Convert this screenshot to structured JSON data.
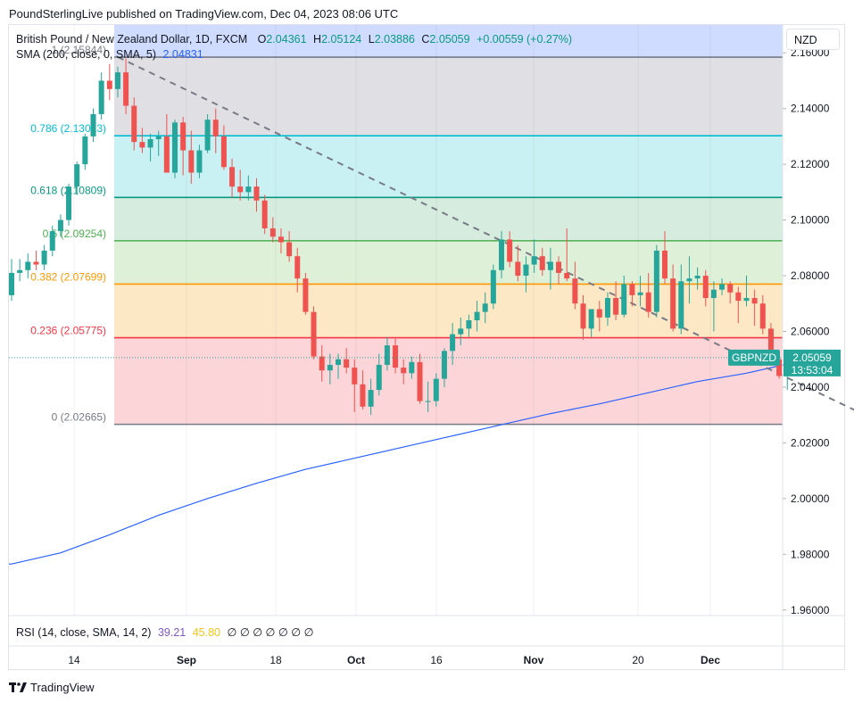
{
  "header": {
    "publisher_line": "PoundSterlingLive published on TradingView.com, Dec 04, 2023 08:06 UTC"
  },
  "legend": {
    "symbol": "British Pound / New Zealand Dollar, 1D, FXCM",
    "o_label": "O",
    "o_value": "2.04361",
    "h_label": "H",
    "h_value": "2.05124",
    "l_label": "L",
    "l_value": "2.03886",
    "c_label": "C",
    "c_value": "2.05059",
    "change": "+0.00559 (+0.27%)",
    "sma_label": "SMA (200, close, 0, SMA, 5)",
    "sma_value": "2.04831"
  },
  "currency_button": "NZD",
  "price_tag": {
    "symbol": "GBPNZD",
    "price": "2.05059",
    "countdown": "13:53:04"
  },
  "rsi_legend": {
    "label": "RSI (14, close, SMA, 14, 2)",
    "value1": "39.21",
    "value2": "45.80",
    "na": "∅ ∅ ∅ ∅ ∅ ∅ ∅"
  },
  "footer": {
    "logo_text": "TradingView",
    "logo_icon": "tradingview-logo-icon"
  },
  "colors": {
    "up": "#26a69a",
    "down": "#ef5350",
    "sma": "#2962ff",
    "trendline": "#787b86"
  },
  "chart_data": {
    "type": "candlestick",
    "title": "British Pound / New Zealand Dollar, 1D, FXCM",
    "ylim": [
      1.955,
      2.175
    ],
    "y_ticks": [
      "2.16000",
      "2.14000",
      "2.12000",
      "2.10000",
      "2.08000",
      "2.06000",
      "2.04000",
      "2.02000",
      "2.00000",
      "1.98000",
      "1.96000"
    ],
    "x_ticks": [
      "14",
      "Sep",
      "18",
      "Oct",
      "16",
      "Nov",
      "20",
      "Dec"
    ],
    "fib_levels": [
      {
        "ratio": 1,
        "value": 2.15844,
        "label": "1 (2.15844)",
        "color": "#787b86"
      },
      {
        "ratio": 0.786,
        "value": 2.13023,
        "label": "0.786 (2.13023)",
        "color": "#00bcd4"
      },
      {
        "ratio": 0.618,
        "value": 2.10809,
        "label": "0.618 (2.10809)",
        "color": "#089981"
      },
      {
        "ratio": 0.5,
        "value": 2.09254,
        "label": "0.5 (2.09254)",
        "color": "#4caf50"
      },
      {
        "ratio": 0.382,
        "value": 2.07699,
        "label": "0.382 (2.07699)",
        "color": "#ff9800"
      },
      {
        "ratio": 0.236,
        "value": 2.05775,
        "label": "0.236 (2.05775)",
        "color": "#f23645"
      },
      {
        "ratio": 0,
        "value": 2.02665,
        "label": "0 (2.02665)",
        "color": "#787b86"
      }
    ],
    "fib_top_value": 2.176,
    "candles": [
      [
        2.073,
        2.086,
        2.071,
        2.081
      ],
      [
        2.081,
        2.086,
        2.078,
        2.082
      ],
      [
        2.082,
        2.088,
        2.079,
        2.085
      ],
      [
        2.085,
        2.089,
        2.082,
        2.084
      ],
      [
        2.084,
        2.091,
        2.082,
        2.089
      ],
      [
        2.089,
        2.098,
        2.087,
        2.096
      ],
      [
        2.096,
        2.102,
        2.094,
        2.1
      ],
      [
        2.1,
        2.113,
        2.098,
        2.112
      ],
      [
        2.112,
        2.121,
        2.109,
        2.12
      ],
      [
        2.12,
        2.131,
        2.118,
        2.13
      ],
      [
        2.13,
        2.14,
        2.128,
        2.138
      ],
      [
        2.138,
        2.153,
        2.136,
        2.15
      ],
      [
        2.15,
        2.156,
        2.143,
        2.147
      ],
      [
        2.147,
        2.155,
        2.144,
        2.153
      ],
      [
        2.153,
        2.158,
        2.138,
        2.141
      ],
      [
        2.141,
        2.144,
        2.125,
        2.128
      ],
      [
        2.128,
        2.133,
        2.124,
        2.126
      ],
      [
        2.126,
        2.131,
        2.121,
        2.129
      ],
      [
        2.129,
        2.132,
        2.123,
        2.13
      ],
      [
        2.13,
        2.138,
        2.117,
        2.117
      ],
      [
        2.117,
        2.136,
        2.115,
        2.135
      ],
      [
        2.135,
        2.137,
        2.116,
        2.125
      ],
      [
        2.125,
        2.132,
        2.113,
        2.117
      ],
      [
        2.117,
        2.127,
        2.115,
        2.125
      ],
      [
        2.125,
        2.138,
        2.124,
        2.136
      ],
      [
        2.136,
        2.14,
        2.124,
        2.13
      ],
      [
        2.13,
        2.134,
        2.118,
        2.119
      ],
      [
        2.119,
        2.122,
        2.108,
        2.112
      ],
      [
        2.112,
        2.118,
        2.107,
        2.11
      ],
      [
        2.11,
        2.116,
        2.107,
        2.112
      ],
      [
        2.112,
        2.115,
        2.103,
        2.107
      ],
      [
        2.107,
        2.109,
        2.095,
        2.097
      ],
      [
        2.097,
        2.101,
        2.092,
        2.094
      ],
      [
        2.094,
        2.097,
        2.088,
        2.092
      ],
      [
        2.092,
        2.096,
        2.085,
        2.087
      ],
      [
        2.087,
        2.09,
        2.074,
        2.079
      ],
      [
        2.079,
        2.081,
        2.066,
        2.067
      ],
      [
        2.067,
        2.069,
        2.05,
        2.051
      ],
      [
        2.051,
        2.055,
        2.042,
        2.046
      ],
      [
        2.046,
        2.052,
        2.041,
        2.048
      ],
      [
        2.048,
        2.052,
        2.043,
        2.05
      ],
      [
        2.05,
        2.054,
        2.045,
        2.047
      ],
      [
        2.047,
        2.05,
        2.031,
        2.041
      ],
      [
        2.041,
        2.046,
        2.032,
        2.033
      ],
      [
        2.033,
        2.043,
        2.03,
        2.039
      ],
      [
        2.039,
        2.052,
        2.037,
        2.048
      ],
      [
        2.048,
        2.058,
        2.046,
        2.055
      ],
      [
        2.055,
        2.058,
        2.045,
        2.047
      ],
      [
        2.047,
        2.05,
        2.041,
        2.045
      ],
      [
        2.045,
        2.051,
        2.043,
        2.049
      ],
      [
        2.049,
        2.052,
        2.034,
        2.035
      ],
      [
        2.035,
        2.042,
        2.031,
        2.035
      ],
      [
        2.035,
        2.045,
        2.033,
        2.043
      ],
      [
        2.043,
        2.054,
        2.04,
        2.053
      ],
      [
        2.053,
        2.063,
        2.048,
        2.059
      ],
      [
        2.059,
        2.065,
        2.055,
        2.061
      ],
      [
        2.061,
        2.066,
        2.058,
        2.064
      ],
      [
        2.064,
        2.071,
        2.06,
        2.067
      ],
      [
        2.067,
        2.074,
        2.063,
        2.07
      ],
      [
        2.07,
        2.084,
        2.068,
        2.082
      ],
      [
        2.082,
        2.096,
        2.079,
        2.093
      ],
      [
        2.093,
        2.096,
        2.083,
        2.085
      ],
      [
        2.085,
        2.091,
        2.078,
        2.08
      ],
      [
        2.08,
        2.087,
        2.074,
        2.084
      ],
      [
        2.084,
        2.093,
        2.081,
        2.087
      ],
      [
        2.087,
        2.09,
        2.08,
        2.082
      ],
      [
        2.082,
        2.09,
        2.075,
        2.085
      ],
      [
        2.085,
        2.087,
        2.077,
        2.081
      ],
      [
        2.081,
        2.097,
        2.078,
        2.079
      ],
      [
        2.079,
        2.085,
        2.068,
        2.07
      ],
      [
        2.07,
        2.073,
        2.057,
        2.061
      ],
      [
        2.061,
        2.068,
        2.058,
        2.068
      ],
      [
        2.068,
        2.071,
        2.06,
        2.065
      ],
      [
        2.065,
        2.074,
        2.062,
        2.072
      ],
      [
        2.072,
        2.078,
        2.064,
        2.066
      ],
      [
        2.066,
        2.08,
        2.065,
        2.077
      ],
      [
        2.077,
        2.078,
        2.069,
        2.073
      ],
      [
        2.073,
        2.08,
        2.069,
        2.074
      ],
      [
        2.074,
        2.081,
        2.065,
        2.067
      ],
      [
        2.067,
        2.091,
        2.065,
        2.089
      ],
      [
        2.089,
        2.096,
        2.077,
        2.079
      ],
      [
        2.079,
        2.084,
        2.06,
        2.061
      ],
      [
        2.061,
        2.084,
        2.059,
        2.078
      ],
      [
        2.078,
        2.087,
        2.07,
        2.079
      ],
      [
        2.079,
        2.083,
        2.075,
        2.08
      ],
      [
        2.08,
        2.082,
        2.069,
        2.072
      ],
      [
        2.072,
        2.078,
        2.06,
        2.075
      ],
      [
        2.075,
        2.079,
        2.073,
        2.077
      ],
      [
        2.077,
        2.078,
        2.07,
        2.074
      ],
      [
        2.074,
        2.076,
        2.063,
        2.071
      ],
      [
        2.071,
        2.08,
        2.069,
        2.072
      ],
      [
        2.072,
        2.075,
        2.062,
        2.07
      ],
      [
        2.07,
        2.073,
        2.059,
        2.061
      ],
      [
        2.061,
        2.063,
        2.05,
        2.05
      ],
      [
        2.05,
        2.053,
        2.043,
        2.044
      ],
      [
        2.044,
        2.051,
        2.039,
        2.051
      ]
    ],
    "sma200": [
      [
        0,
        1.9765
      ],
      [
        6,
        1.9805
      ],
      [
        12,
        1.987
      ],
      [
        18,
        1.994
      ],
      [
        24,
        2.0
      ],
      [
        30,
        2.0055
      ],
      [
        36,
        2.0105
      ],
      [
        42,
        2.0145
      ],
      [
        48,
        2.0185
      ],
      [
        54,
        2.0225
      ],
      [
        60,
        2.0265
      ],
      [
        66,
        2.0305
      ],
      [
        72,
        2.034
      ],
      [
        78,
        2.038
      ],
      [
        84,
        2.042
      ],
      [
        90,
        2.045
      ],
      [
        95,
        2.0483
      ]
    ],
    "trendline": {
      "start": [
        13,
        2.1585
      ],
      "end": [
        107,
        2.0265
      ]
    }
  }
}
